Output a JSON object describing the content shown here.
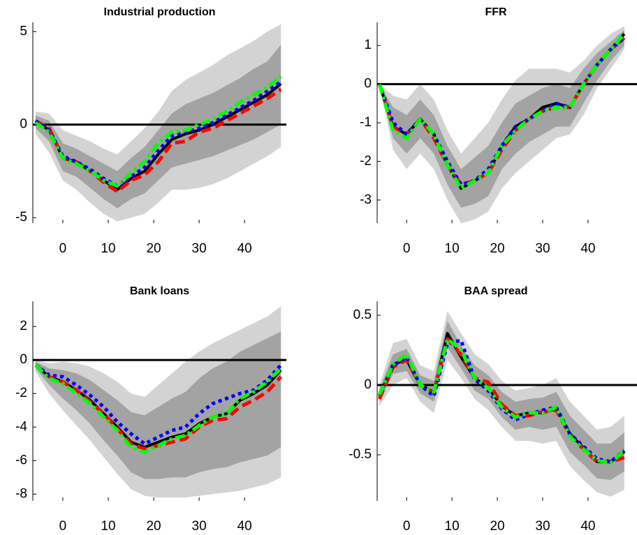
{
  "chart_data": [
    {
      "type": "line",
      "title": "Industrial production",
      "x": [
        -6,
        -3,
        0,
        3,
        6,
        9,
        12,
        15,
        18,
        21,
        24,
        27,
        30,
        33,
        36,
        39,
        42,
        45,
        48
      ],
      "xlim": [
        -6.6,
        49.2
      ],
      "ylim": [
        -5.3,
        5.5
      ],
      "xticks": [
        0,
        10,
        20,
        30,
        40
      ],
      "yticks": [
        -5,
        0,
        5
      ],
      "reference_line": 0,
      "bands": [
        {
          "color": "#d3d3d3",
          "lower": [
            -0.5,
            -1.5,
            -3.0,
            -3.5,
            -4.2,
            -4.8,
            -5.2,
            -5.0,
            -4.8,
            -4.2,
            -3.5,
            -3.5,
            -3.4,
            -3.2,
            -2.9,
            -2.5,
            -2.1,
            -1.7,
            -1.2
          ],
          "upper": [
            0.7,
            0.6,
            -0.3,
            -0.6,
            -0.9,
            -1.3,
            -1.6,
            -0.9,
            -0.2,
            0.7,
            1.8,
            2.4,
            2.8,
            3.2,
            3.7,
            4.1,
            4.5,
            5.0,
            5.4
          ]
        },
        {
          "color": "#a3a3a3",
          "lower": [
            -0.2,
            -0.9,
            -2.5,
            -2.8,
            -3.4,
            -4.0,
            -4.5,
            -4.0,
            -3.7,
            -3.0,
            -2.3,
            -2.1,
            -1.9,
            -1.7,
            -1.4,
            -1.1,
            -0.8,
            -0.4,
            0.0
          ],
          "upper": [
            0.5,
            0.2,
            -1.0,
            -1.3,
            -1.7,
            -2.1,
            -2.5,
            -1.8,
            -1.2,
            -0.3,
            0.6,
            1.1,
            1.4,
            1.7,
            2.1,
            2.5,
            3.0,
            3.4,
            4.3
          ]
        }
      ],
      "series": [
        {
          "color": "#000000",
          "dash": "solid",
          "values": [
            0.2,
            -0.3,
            -1.8,
            -2.0,
            -2.5,
            -3.0,
            -3.5,
            -2.9,
            -2.5,
            -1.6,
            -0.8,
            -0.5,
            -0.3,
            0.0,
            0.4,
            0.8,
            1.2,
            1.6,
            2.2
          ]
        },
        {
          "color": "#ff0000",
          "dash": "dashed",
          "values": [
            0.2,
            -0.2,
            -1.8,
            -2.0,
            -2.5,
            -3.1,
            -3.6,
            -3.0,
            -2.7,
            -2.0,
            -1.0,
            -0.9,
            -0.4,
            -0.2,
            0.2,
            0.6,
            1.0,
            1.4,
            1.9
          ]
        },
        {
          "color": "#0000ff",
          "dash": "dotted",
          "values": [
            0.2,
            -0.3,
            -1.7,
            -2.0,
            -2.4,
            -2.9,
            -3.3,
            -2.8,
            -2.3,
            -1.4,
            -0.6,
            -0.4,
            -0.2,
            0.1,
            0.5,
            0.9,
            1.3,
            1.8,
            2.3
          ]
        },
        {
          "color": "#00ff00",
          "dash": "dashdot",
          "values": [
            0.1,
            -0.4,
            -1.8,
            -2.1,
            -2.5,
            -3.0,
            -3.3,
            -2.6,
            -2.0,
            -1.0,
            -0.4,
            -0.3,
            0.0,
            0.3,
            0.7,
            1.2,
            1.6,
            2.0,
            2.6
          ]
        }
      ]
    },
    {
      "type": "line",
      "title": "FFR",
      "x": [
        -6,
        -3,
        0,
        3,
        6,
        9,
        12,
        15,
        18,
        21,
        24,
        27,
        30,
        33,
        36,
        39,
        42,
        45,
        48
      ],
      "xlim": [
        -6.5,
        50.8
      ],
      "ylim": [
        -3.6,
        1.6
      ],
      "xticks": [
        0,
        10,
        20,
        30,
        40
      ],
      "yticks": [
        -3,
        -2,
        -1,
        0,
        1
      ],
      "reference_line": 0,
      "bands": [
        {
          "color": "#d3d3d3",
          "lower": [
            0,
            -1.7,
            -2.2,
            -1.8,
            -2.2,
            -3.0,
            -3.6,
            -3.5,
            -3.3,
            -2.7,
            -2.3,
            -2.0,
            -1.7,
            -1.4,
            -1.3,
            -0.8,
            -0.1,
            0.4,
            0.9
          ],
          "upper": [
            0,
            -0.3,
            -0.4,
            0.0,
            -0.4,
            -1.2,
            -1.8,
            -1.4,
            -1.0,
            -0.4,
            0.1,
            0.4,
            0.4,
            0.4,
            0.3,
            0.6,
            1.0,
            1.3,
            1.5
          ]
        },
        {
          "color": "#a3a3a3",
          "lower": [
            0,
            -1.4,
            -1.8,
            -1.4,
            -1.8,
            -2.6,
            -3.2,
            -3.1,
            -2.9,
            -2.2,
            -1.8,
            -1.5,
            -1.3,
            -1.1,
            -1.1,
            -0.5,
            0.1,
            0.6,
            1.0
          ],
          "upper": [
            0,
            -0.6,
            -0.8,
            -0.4,
            -0.8,
            -1.6,
            -2.2,
            -1.9,
            -1.6,
            -1.0,
            -0.5,
            -0.3,
            -0.1,
            0.0,
            -0.1,
            0.4,
            0.8,
            1.1,
            1.4
          ]
        }
      ],
      "series": [
        {
          "color": "#000000",
          "dash": "solid",
          "values": [
            0,
            -1.1,
            -1.3,
            -0.9,
            -1.3,
            -2.1,
            -2.7,
            -2.5,
            -2.3,
            -1.6,
            -1.1,
            -0.9,
            -0.6,
            -0.5,
            -0.6,
            0.0,
            0.5,
            0.9,
            1.3
          ]
        },
        {
          "color": "#ff0000",
          "dash": "dashed",
          "values": [
            0,
            -1.1,
            -1.3,
            -0.9,
            -1.4,
            -2.1,
            -2.6,
            -2.5,
            -2.3,
            -1.7,
            -1.2,
            -0.9,
            -0.7,
            -0.6,
            -0.6,
            0.0,
            0.5,
            0.9,
            1.2
          ]
        },
        {
          "color": "#0000ff",
          "dash": "dotted",
          "values": [
            0,
            -1.0,
            -1.3,
            -0.9,
            -1.3,
            -2.0,
            -2.6,
            -2.5,
            -2.2,
            -1.6,
            -1.1,
            -0.9,
            -0.7,
            -0.5,
            -0.6,
            0.0,
            0.5,
            0.9,
            1.2
          ]
        },
        {
          "color": "#00ff00",
          "dash": "dashdot",
          "values": [
            0,
            -1.2,
            -1.4,
            -0.9,
            -1.3,
            -2.1,
            -2.7,
            -2.5,
            -2.3,
            -1.6,
            -1.2,
            -0.9,
            -0.7,
            -0.6,
            -0.6,
            0.0,
            0.5,
            0.9,
            1.3
          ]
        }
      ]
    },
    {
      "type": "line",
      "title": "Bank loans",
      "x": [
        -6,
        -3,
        0,
        3,
        6,
        9,
        12,
        15,
        18,
        21,
        24,
        27,
        30,
        33,
        36,
        39,
        42,
        45,
        48
      ],
      "xlim": [
        -6.6,
        49.2
      ],
      "ylim": [
        -8.4,
        3.5
      ],
      "xticks": [
        0,
        10,
        20,
        30,
        40
      ],
      "yticks": [
        -8,
        -6,
        -4,
        -2,
        0,
        2
      ],
      "reference_line": 0,
      "bands": [
        {
          "color": "#d3d3d3",
          "lower": [
            -0.7,
            -2.0,
            -3.0,
            -3.9,
            -4.8,
            -5.8,
            -6.8,
            -7.7,
            -8.1,
            -8.2,
            -8.2,
            -8.2,
            -8.1,
            -8.0,
            -7.9,
            -7.8,
            -7.6,
            -7.4,
            -7.0
          ],
          "upper": [
            0,
            -0.2,
            -0.1,
            -0.2,
            -0.4,
            -0.8,
            -1.3,
            -2.0,
            -2.2,
            -1.5,
            -0.8,
            -0.1,
            0.5,
            1.0,
            1.4,
            1.8,
            2.2,
            2.6,
            3.2
          ]
        },
        {
          "color": "#a3a3a3",
          "lower": [
            -0.5,
            -1.5,
            -2.3,
            -3.0,
            -3.8,
            -4.8,
            -5.7,
            -6.7,
            -7.1,
            -7.1,
            -7.0,
            -7.0,
            -6.7,
            -6.5,
            -6.4,
            -6.1,
            -5.9,
            -5.7,
            -5.2
          ],
          "upper": [
            -0.1,
            -0.5,
            -0.6,
            -0.8,
            -1.2,
            -1.8,
            -2.4,
            -3.1,
            -3.3,
            -2.8,
            -2.3,
            -1.9,
            -1.1,
            -0.5,
            -0.1,
            0.5,
            0.9,
            1.3,
            1.7
          ]
        }
      ],
      "series": [
        {
          "color": "#000000",
          "dash": "solid",
          "values": [
            -0.3,
            -1.0,
            -1.3,
            -1.8,
            -2.4,
            -3.2,
            -4.0,
            -4.9,
            -5.2,
            -4.9,
            -4.6,
            -4.4,
            -3.8,
            -3.4,
            -3.2,
            -2.4,
            -2.0,
            -1.5,
            -0.6
          ]
        },
        {
          "color": "#ff0000",
          "dash": "dashed",
          "values": [
            -0.3,
            -1.0,
            -1.3,
            -1.8,
            -2.5,
            -3.2,
            -4.1,
            -5.0,
            -5.3,
            -5.1,
            -4.9,
            -4.7,
            -4.0,
            -3.6,
            -3.5,
            -2.8,
            -2.4,
            -1.9,
            -1.0
          ]
        },
        {
          "color": "#0000ff",
          "dash": "dotted",
          "values": [
            -0.3,
            -0.9,
            -1.0,
            -1.5,
            -2.1,
            -2.8,
            -3.7,
            -4.4,
            -5.0,
            -4.6,
            -4.2,
            -4.0,
            -3.2,
            -2.6,
            -2.3,
            -2.0,
            -1.8,
            -1.2,
            -0.3
          ]
        },
        {
          "color": "#00ff00",
          "dash": "dashdot",
          "values": [
            -0.3,
            -1.1,
            -1.4,
            -2.0,
            -2.6,
            -3.4,
            -4.2,
            -5.2,
            -5.5,
            -5.1,
            -4.7,
            -4.5,
            -3.9,
            -3.4,
            -3.2,
            -2.3,
            -1.9,
            -1.3,
            -0.5
          ]
        }
      ]
    },
    {
      "type": "line",
      "title": "BAA spread",
      "x": [
        -6,
        -3,
        0,
        3,
        6,
        9,
        12,
        15,
        18,
        21,
        24,
        27,
        30,
        33,
        36,
        39,
        42,
        45,
        48
      ],
      "xlim": [
        -6.5,
        50.8
      ],
      "ylim": [
        -0.83,
        0.6
      ],
      "xticks": [
        0,
        10,
        20,
        30,
        40
      ],
      "yticks": [
        -0.5,
        0,
        0.5
      ],
      "reference_line": 0,
      "bands": [
        {
          "color": "#d3d3d3",
          "lower": [
            -0.15,
            0.0,
            0.05,
            -0.12,
            -0.2,
            0.18,
            0.05,
            -0.1,
            -0.18,
            -0.3,
            -0.4,
            -0.4,
            -0.42,
            -0.4,
            -0.58,
            -0.68,
            -0.77,
            -0.8,
            -0.75
          ],
          "upper": [
            0.0,
            0.3,
            0.33,
            0.14,
            0.1,
            0.53,
            0.37,
            0.22,
            0.15,
            0.03,
            -0.04,
            -0.02,
            0.0,
            0.05,
            -0.12,
            -0.22,
            -0.32,
            -0.3,
            -0.22
          ]
        },
        {
          "color": "#a3a3a3",
          "lower": [
            -0.12,
            0.08,
            0.1,
            -0.06,
            -0.12,
            0.27,
            0.12,
            -0.04,
            -0.1,
            -0.23,
            -0.32,
            -0.3,
            -0.32,
            -0.3,
            -0.48,
            -0.57,
            -0.67,
            -0.68,
            -0.62
          ],
          "upper": [
            -0.03,
            0.22,
            0.26,
            0.07,
            0.03,
            0.46,
            0.28,
            0.14,
            0.07,
            -0.05,
            -0.12,
            -0.1,
            -0.09,
            -0.05,
            -0.22,
            -0.32,
            -0.42,
            -0.42,
            -0.34
          ]
        }
      ],
      "series": [
        {
          "color": "#000000",
          "dash": "solid",
          "values": [
            -0.08,
            0.15,
            0.18,
            0.0,
            -0.05,
            0.37,
            0.2,
            0.05,
            -0.02,
            -0.15,
            -0.22,
            -0.2,
            -0.2,
            -0.17,
            -0.35,
            -0.45,
            -0.55,
            -0.55,
            -0.48
          ]
        },
        {
          "color": "#ff0000",
          "dash": "dashed",
          "values": [
            -0.1,
            0.13,
            0.18,
            0.0,
            -0.05,
            0.33,
            0.22,
            0.05,
            0.02,
            -0.14,
            -0.22,
            -0.22,
            -0.19,
            -0.18,
            -0.36,
            -0.46,
            -0.55,
            -0.55,
            -0.52
          ]
        },
        {
          "color": "#0000ff",
          "dash": "dotted",
          "values": [
            -0.07,
            0.14,
            0.2,
            0.0,
            -0.08,
            0.3,
            0.32,
            0.04,
            -0.04,
            -0.17,
            -0.25,
            -0.21,
            -0.18,
            -0.16,
            -0.35,
            -0.44,
            -0.53,
            -0.55,
            -0.47
          ]
        },
        {
          "color": "#00ff00",
          "dash": "dashdot",
          "values": [
            -0.07,
            0.15,
            0.22,
            0.0,
            -0.05,
            0.33,
            0.25,
            0.05,
            -0.02,
            -0.16,
            -0.23,
            -0.2,
            -0.2,
            -0.16,
            -0.37,
            -0.46,
            -0.54,
            -0.56,
            -0.47
          ]
        }
      ]
    }
  ]
}
